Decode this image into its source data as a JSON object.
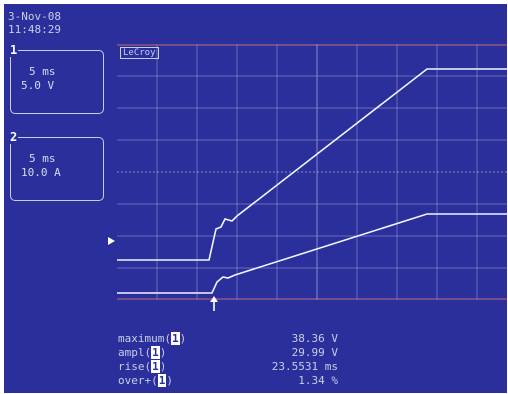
{
  "header": {
    "date": "3-Nov-08",
    "time": "11:48:29"
  },
  "channels": [
    {
      "number": "1",
      "timebase": "5 ms",
      "scale": "5.0 V"
    },
    {
      "number": "2",
      "timebase": "5 ms",
      "scale": "10.0 A"
    }
  ],
  "brand": "LeCroy",
  "measurements": [
    {
      "label": "maximum(",
      "channel": "1",
      "close": ")",
      "value": "38.36 V"
    },
    {
      "label": "ampl(",
      "channel": "1",
      "close": ")",
      "value": "29.99 V"
    },
    {
      "label": "rise(",
      "channel": "1",
      "close": ")",
      "value": "23.5531 ms"
    },
    {
      "label": "over+(",
      "channel": "1",
      "close": ")",
      "value": "1.34 %"
    }
  ]
}
